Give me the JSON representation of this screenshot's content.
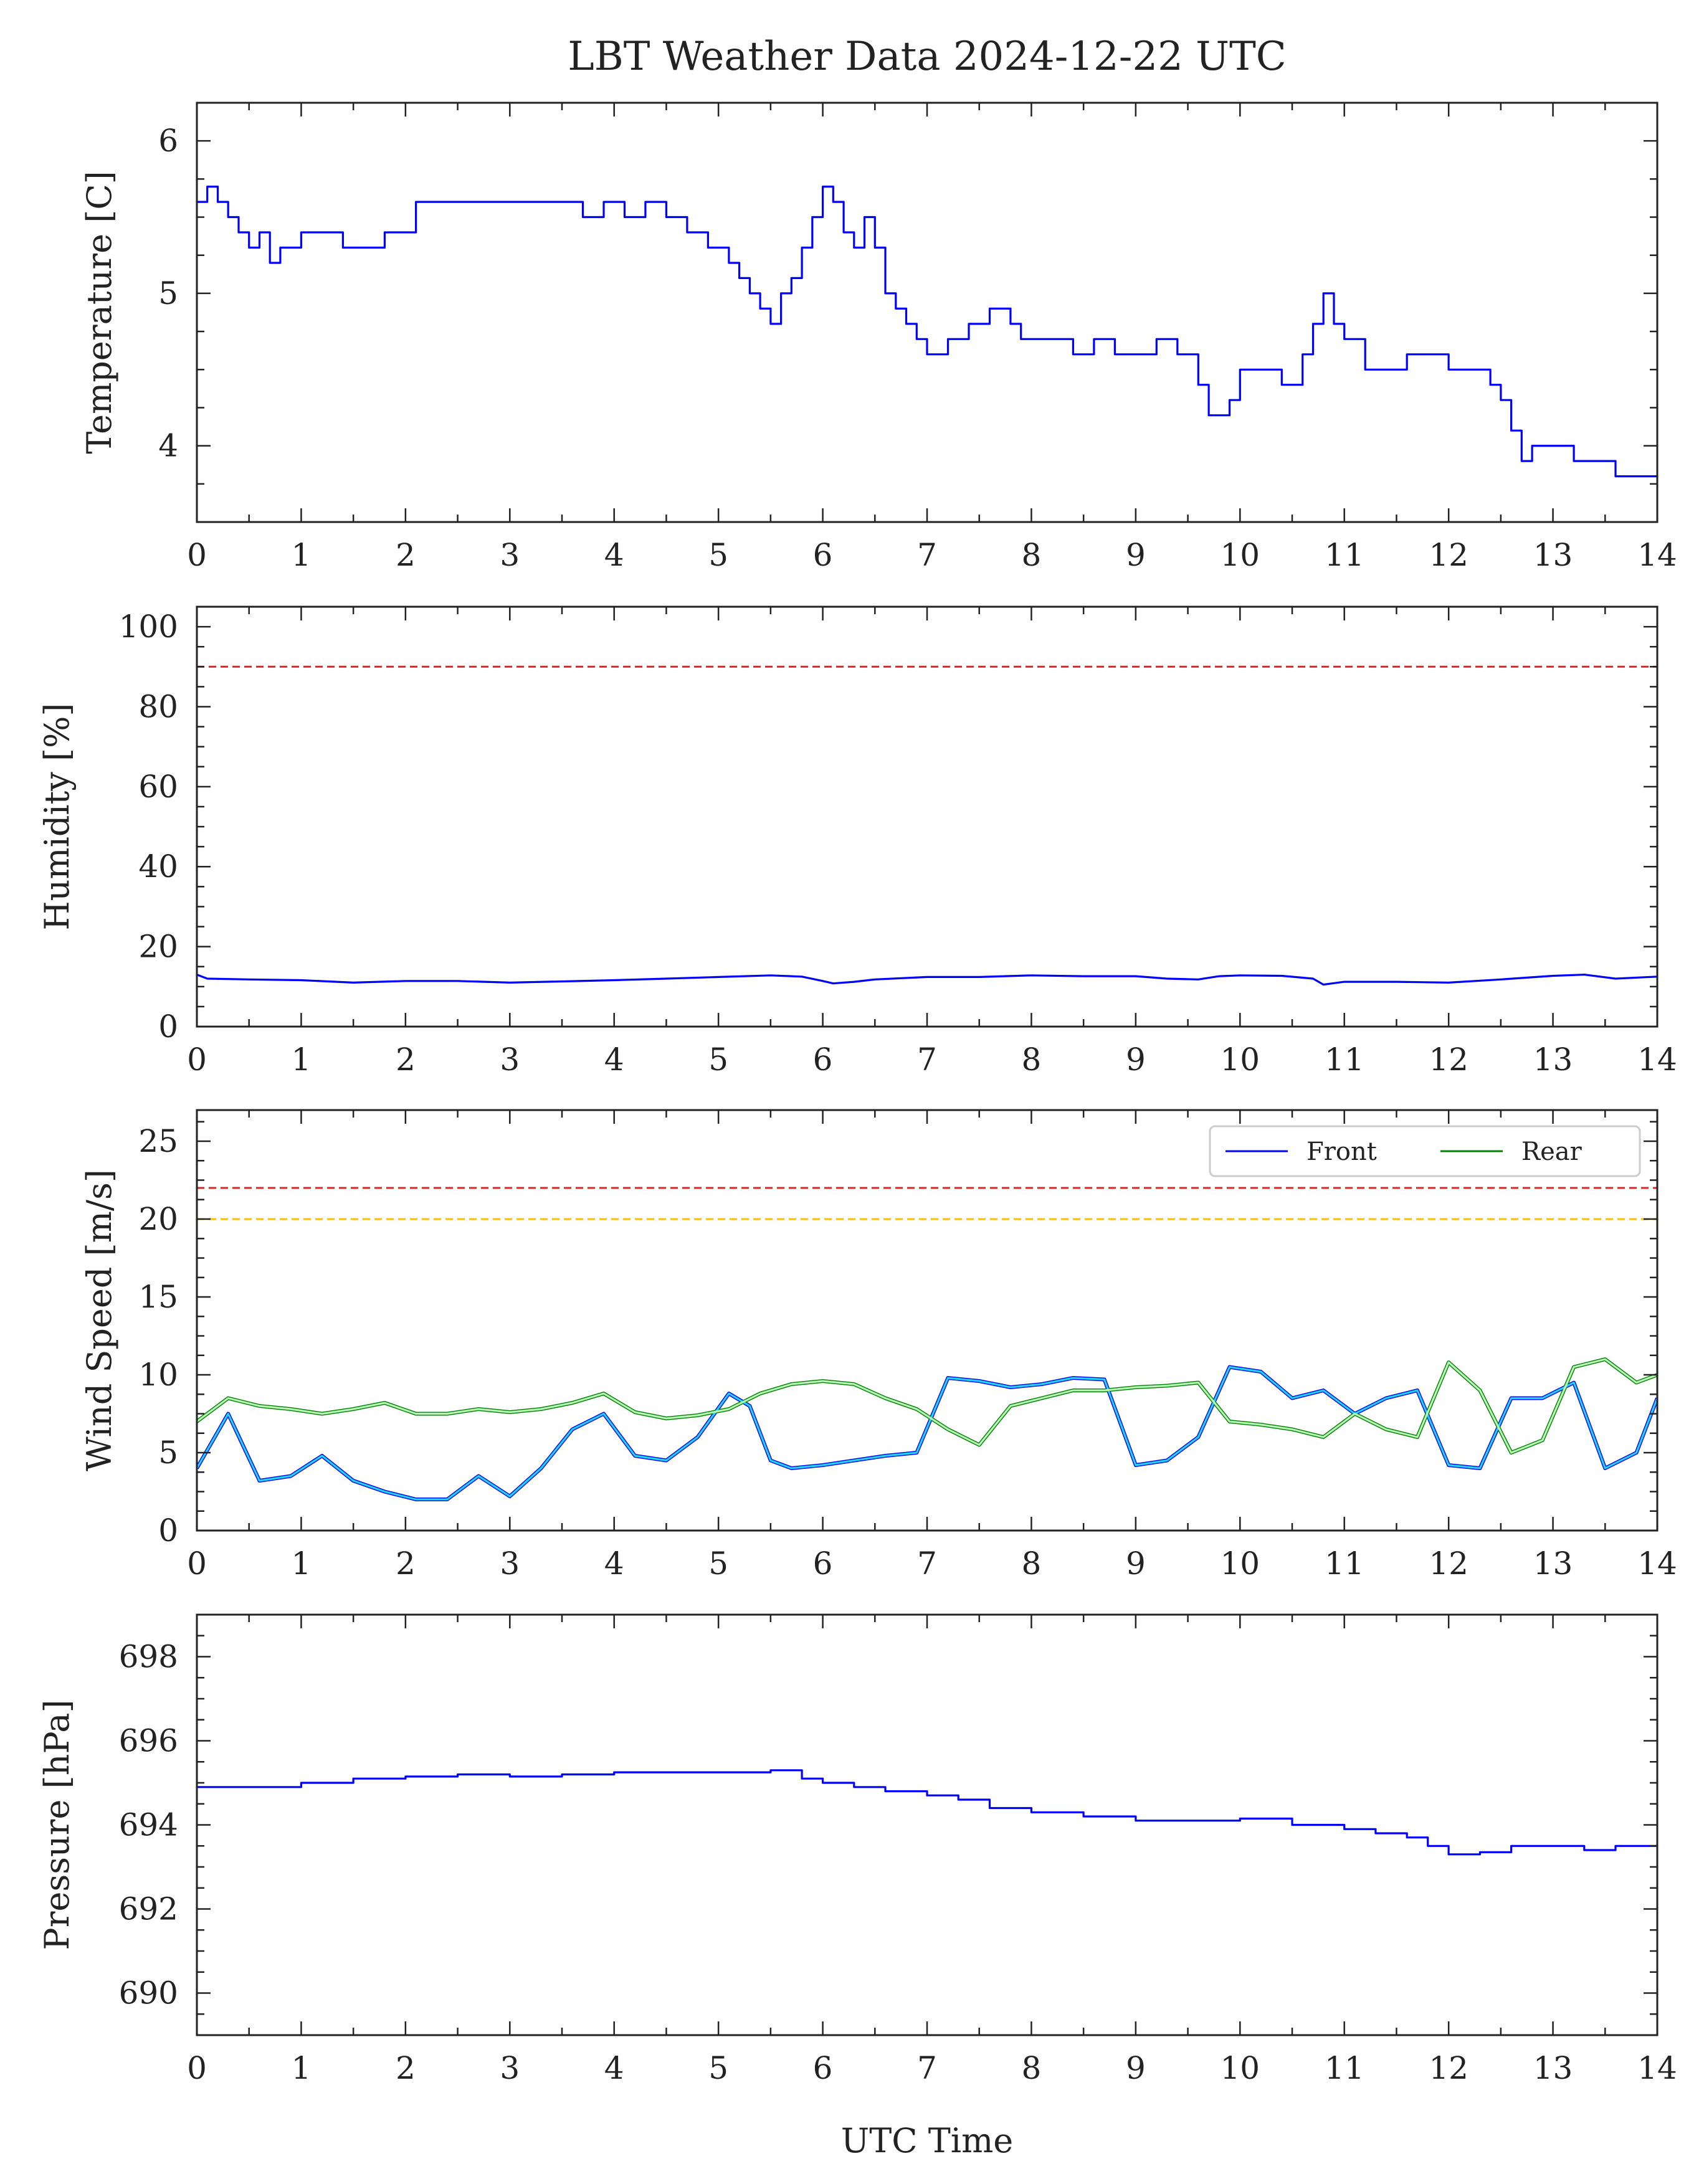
{
  "figure": {
    "title": "LBT Weather Data 2024-12-22 UTC",
    "xlabel": "UTC Time"
  },
  "colors": {
    "front": "#0000ff",
    "rear": "#008000",
    "front_mean": "#22d3ee",
    "rear_mean": "#b6f5b6",
    "limit_red": "#d62728",
    "limit_yellow": "#ffbf00",
    "axes": "#222222"
  },
  "chart_data": [
    {
      "type": "line",
      "title": "LBT Weather Data 2024-12-22 UTC",
      "xlabel": "",
      "ylabel": "Temperature [C]",
      "xlim": [
        0,
        14
      ],
      "ylim": [
        3.5,
        6.25
      ],
      "xticks": [
        0,
        1,
        2,
        3,
        4,
        5,
        6,
        7,
        8,
        9,
        10,
        11,
        12,
        13,
        14
      ],
      "yticks": [
        4,
        5,
        6
      ],
      "grid": false,
      "series": [
        {
          "name": "",
          "color": "#0000ff",
          "step": true,
          "x": [
            0,
            0.1,
            0.2,
            0.3,
            0.4,
            0.5,
            0.6,
            0.7,
            0.8,
            0.9,
            1.0,
            1.2,
            1.4,
            1.6,
            1.8,
            2.0,
            2.1,
            2.3,
            2.5,
            2.7,
            3.0,
            3.2,
            3.5,
            3.7,
            3.9,
            4.1,
            4.3,
            4.5,
            4.7,
            4.9,
            5.1,
            5.2,
            5.3,
            5.4,
            5.5,
            5.6,
            5.7,
            5.8,
            5.9,
            6.0,
            6.1,
            6.2,
            6.3,
            6.4,
            6.5,
            6.6,
            6.7,
            6.8,
            6.9,
            7.0,
            7.2,
            7.4,
            7.6,
            7.8,
            7.9,
            8.0,
            8.2,
            8.4,
            8.6,
            8.8,
            9.0,
            9.2,
            9.4,
            9.6,
            9.7,
            9.8,
            9.9,
            10.0,
            10.2,
            10.4,
            10.5,
            10.6,
            10.7,
            10.8,
            10.9,
            11.0,
            11.2,
            11.4,
            11.6,
            11.8,
            12.0,
            12.2,
            12.4,
            12.5,
            12.6,
            12.7,
            12.8,
            12.9,
            13.0,
            13.2,
            13.4,
            13.6,
            13.8,
            14.0
          ],
          "y": [
            5.6,
            5.7,
            5.6,
            5.5,
            5.4,
            5.3,
            5.4,
            5.2,
            5.3,
            5.3,
            5.4,
            5.4,
            5.3,
            5.3,
            5.4,
            5.4,
            5.6,
            5.6,
            5.6,
            5.6,
            5.6,
            5.6,
            5.6,
            5.5,
            5.6,
            5.5,
            5.6,
            5.5,
            5.4,
            5.3,
            5.2,
            5.1,
            5.0,
            4.9,
            4.8,
            5.0,
            5.1,
            5.3,
            5.5,
            5.7,
            5.6,
            5.4,
            5.3,
            5.5,
            5.3,
            5.0,
            4.9,
            4.8,
            4.7,
            4.6,
            4.7,
            4.8,
            4.9,
            4.8,
            4.7,
            4.7,
            4.7,
            4.6,
            4.7,
            4.6,
            4.6,
            4.7,
            4.6,
            4.4,
            4.2,
            4.2,
            4.3,
            4.5,
            4.5,
            4.4,
            4.4,
            4.6,
            4.8,
            5.0,
            4.8,
            4.7,
            4.5,
            4.5,
            4.6,
            4.6,
            4.5,
            4.5,
            4.4,
            4.3,
            4.1,
            3.9,
            4.0,
            4.0,
            4.0,
            3.9,
            3.9,
            3.8,
            3.8,
            3.8
          ]
        }
      ]
    },
    {
      "type": "line",
      "xlabel": "",
      "ylabel": "Humidity [%]",
      "xlim": [
        0,
        14
      ],
      "ylim": [
        0,
        105
      ],
      "xticks": [
        0,
        1,
        2,
        3,
        4,
        5,
        6,
        7,
        8,
        9,
        10,
        11,
        12,
        13,
        14
      ],
      "yticks": [
        0,
        20,
        40,
        60,
        80,
        100
      ],
      "grid": false,
      "hlines": [
        {
          "y": 90,
          "color": "#d62728",
          "style": "dashed"
        }
      ],
      "series": [
        {
          "name": "",
          "color": "#0000ff",
          "x": [
            0,
            0.1,
            0.5,
            1.0,
            1.5,
            2.0,
            2.5,
            3.0,
            3.5,
            4.0,
            4.5,
            5.0,
            5.5,
            5.8,
            6.0,
            6.1,
            6.3,
            6.5,
            7.0,
            7.5,
            8.0,
            8.5,
            9.0,
            9.3,
            9.6,
            9.8,
            10.0,
            10.4,
            10.7,
            10.8,
            11.0,
            11.5,
            12.0,
            12.5,
            13.0,
            13.3,
            13.6,
            14.0
          ],
          "y": [
            13,
            12,
            11.8,
            11.6,
            11,
            11.4,
            11.4,
            11,
            11.3,
            11.6,
            12,
            12.4,
            12.8,
            12.5,
            11.4,
            10.8,
            11.2,
            11.8,
            12.4,
            12.4,
            12.8,
            12.6,
            12.6,
            12.0,
            11.8,
            12.6,
            12.8,
            12.7,
            12,
            10.5,
            11.2,
            11.2,
            11.0,
            11.8,
            12.7,
            13,
            12,
            12.5
          ]
        }
      ]
    },
    {
      "type": "line",
      "xlabel": "",
      "ylabel": "Wind Speed [m/s]",
      "xlim": [
        0,
        14
      ],
      "ylim": [
        0,
        27
      ],
      "xticks": [
        0,
        1,
        2,
        3,
        4,
        5,
        6,
        7,
        8,
        9,
        10,
        11,
        12,
        13,
        14
      ],
      "yticks": [
        0,
        5,
        10,
        15,
        20,
        25
      ],
      "grid": false,
      "legend": {
        "position": "top-right",
        "ncol": 2
      },
      "hlines": [
        {
          "y": 22,
          "color": "#d62728",
          "style": "dashed"
        },
        {
          "y": 20,
          "color": "#ffbf00",
          "style": "dashed"
        }
      ],
      "series": [
        {
          "name": "Front",
          "color": "#0000ff",
          "x": [
            0,
            0.3,
            0.6,
            0.9,
            1.2,
            1.5,
            1.8,
            2.1,
            2.4,
            2.7,
            3.0,
            3.3,
            3.6,
            3.9,
            4.2,
            4.5,
            4.8,
            5.1,
            5.3,
            5.5,
            5.7,
            6.0,
            6.3,
            6.6,
            6.9,
            7.2,
            7.5,
            7.8,
            8.1,
            8.4,
            8.7,
            9.0,
            9.3,
            9.6,
            9.9,
            10.2,
            10.5,
            10.8,
            11.1,
            11.4,
            11.7,
            12.0,
            12.3,
            12.6,
            12.9,
            13.2,
            13.5,
            13.8,
            14.0
          ],
          "y": [
            4,
            7.5,
            3.2,
            3.5,
            4.8,
            3.2,
            2.5,
            2.0,
            2.0,
            3.5,
            2.2,
            4.0,
            6.5,
            7.5,
            4.8,
            4.5,
            6.0,
            8.8,
            8.0,
            4.5,
            4.0,
            4.2,
            4.5,
            4.8,
            5.0,
            9.8,
            9.6,
            9.2,
            9.4,
            9.8,
            9.7,
            4.2,
            4.5,
            6.0,
            10.5,
            10.2,
            8.5,
            9.0,
            7.5,
            8.5,
            9.0,
            4.2,
            4.0,
            8.5,
            8.5,
            9.5,
            4.0,
            5.0,
            8.5
          ]
        },
        {
          "name": "Rear",
          "color": "#008000",
          "x": [
            0,
            0.3,
            0.6,
            0.9,
            1.2,
            1.5,
            1.8,
            2.1,
            2.4,
            2.7,
            3.0,
            3.3,
            3.6,
            3.9,
            4.2,
            4.5,
            4.8,
            5.1,
            5.4,
            5.7,
            6.0,
            6.3,
            6.6,
            6.9,
            7.2,
            7.5,
            7.8,
            8.1,
            8.4,
            8.7,
            9.0,
            9.3,
            9.6,
            9.9,
            10.2,
            10.5,
            10.8,
            11.1,
            11.4,
            11.7,
            12.0,
            12.3,
            12.6,
            12.9,
            13.2,
            13.5,
            13.8,
            14.0
          ],
          "y": [
            7.0,
            8.5,
            8.0,
            7.8,
            7.5,
            7.8,
            8.2,
            7.5,
            7.5,
            7.8,
            7.6,
            7.8,
            8.2,
            8.8,
            7.6,
            7.2,
            7.4,
            7.8,
            8.8,
            9.4,
            9.6,
            9.4,
            8.5,
            7.8,
            6.5,
            5.5,
            8.0,
            8.5,
            9.0,
            9.0,
            9.2,
            9.3,
            9.5,
            7.0,
            6.8,
            6.5,
            6.0,
            7.5,
            6.5,
            6.0,
            10.8,
            9.0,
            5.0,
            5.8,
            10.5,
            11.0,
            9.5,
            10.0
          ]
        },
        {
          "name": "",
          "color": "#22d3ee",
          "x": [
            0,
            0.3,
            0.6,
            0.9,
            1.2,
            1.5,
            1.8,
            2.1,
            2.4,
            2.7,
            3.0,
            3.3,
            3.6,
            3.9,
            4.2,
            4.5,
            4.8,
            5.1,
            5.3,
            5.5,
            5.7,
            6.0,
            6.3,
            6.6,
            6.9,
            7.2,
            7.5,
            7.8,
            8.1,
            8.4,
            8.7,
            9.0,
            9.3,
            9.6,
            9.9,
            10.2,
            10.5,
            10.8,
            11.1,
            11.4,
            11.7,
            12.0,
            12.3,
            12.6,
            12.9,
            13.2,
            13.5,
            13.8,
            14.0
          ],
          "y": [
            4,
            7.5,
            3.2,
            3.5,
            4.8,
            3.2,
            2.5,
            2.0,
            2.0,
            3.5,
            2.2,
            4.0,
            6.5,
            7.5,
            4.8,
            4.5,
            6.0,
            8.8,
            8.0,
            4.5,
            4.0,
            4.2,
            4.5,
            4.8,
            5.0,
            9.8,
            9.6,
            9.2,
            9.4,
            9.8,
            9.7,
            4.2,
            4.5,
            6.0,
            10.5,
            10.2,
            8.5,
            9.0,
            7.5,
            8.5,
            9.0,
            4.2,
            4.0,
            8.5,
            8.5,
            9.5,
            4.0,
            5.0,
            8.5
          ]
        },
        {
          "name": "",
          "color": "#b6f5b6",
          "x": [
            0,
            0.3,
            0.6,
            0.9,
            1.2,
            1.5,
            1.8,
            2.1,
            2.4,
            2.7,
            3.0,
            3.3,
            3.6,
            3.9,
            4.2,
            4.5,
            4.8,
            5.1,
            5.4,
            5.7,
            6.0,
            6.3,
            6.6,
            6.9,
            7.2,
            7.5,
            7.8,
            8.1,
            8.4,
            8.7,
            9.0,
            9.3,
            9.6,
            9.9,
            10.2,
            10.5,
            10.8,
            11.1,
            11.4,
            11.7,
            12.0,
            12.3,
            12.6,
            12.9,
            13.2,
            13.5,
            13.8,
            14.0
          ],
          "y": [
            7.0,
            8.5,
            8.0,
            7.8,
            7.5,
            7.8,
            8.2,
            7.5,
            7.5,
            7.8,
            7.6,
            7.8,
            8.2,
            8.8,
            7.6,
            7.2,
            7.4,
            7.8,
            8.8,
            9.4,
            9.6,
            9.4,
            8.5,
            7.8,
            6.5,
            5.5,
            8.0,
            8.5,
            9.0,
            9.0,
            9.2,
            9.3,
            9.5,
            7.0,
            6.8,
            6.5,
            6.0,
            7.5,
            6.5,
            6.0,
            10.8,
            9.0,
            5.0,
            5.8,
            10.5,
            11.0,
            9.5,
            10.0
          ]
        }
      ]
    },
    {
      "type": "line",
      "xlabel": "UTC Time",
      "ylabel": "Pressure [hPa]",
      "xlim": [
        0,
        14
      ],
      "ylim": [
        689,
        699
      ],
      "xticks": [
        0,
        1,
        2,
        3,
        4,
        5,
        6,
        7,
        8,
        9,
        10,
        11,
        12,
        13,
        14
      ],
      "yticks": [
        690,
        692,
        694,
        696,
        698
      ],
      "grid": false,
      "series": [
        {
          "name": "",
          "color": "#0000ff",
          "step": true,
          "x": [
            0,
            0.5,
            1.0,
            1.5,
            2.0,
            2.5,
            3.0,
            3.5,
            4.0,
            4.5,
            5.0,
            5.5,
            5.8,
            6.0,
            6.3,
            6.6,
            7.0,
            7.3,
            7.6,
            8.0,
            8.5,
            9.0,
            9.5,
            10.0,
            10.5,
            11.0,
            11.3,
            11.6,
            11.8,
            12.0,
            12.3,
            12.6,
            13.0,
            13.3,
            13.6,
            14.0
          ],
          "y": [
            694.9,
            694.9,
            695.0,
            695.1,
            695.15,
            695.2,
            695.15,
            695.2,
            695.25,
            695.25,
            695.25,
            695.3,
            695.1,
            695.0,
            694.9,
            694.8,
            694.7,
            694.6,
            694.4,
            694.3,
            694.2,
            694.1,
            694.1,
            694.15,
            694.0,
            693.9,
            693.8,
            693.7,
            693.5,
            693.3,
            693.35,
            693.5,
            693.5,
            693.4,
            693.5,
            693.55
          ]
        }
      ]
    }
  ]
}
